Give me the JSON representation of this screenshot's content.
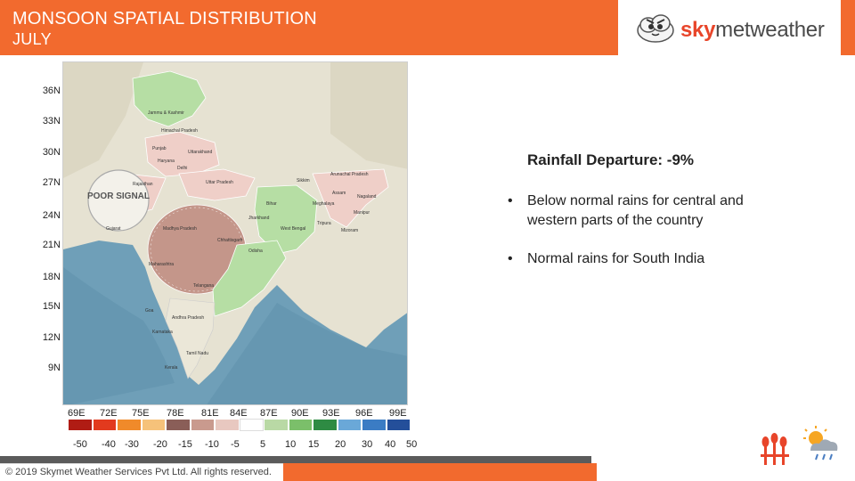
{
  "header": {
    "title": "MONSOON SPATIAL DISTRIBUTION",
    "subtitle": "JULY",
    "logo_prefix": "sky",
    "logo_suffix": "metweather"
  },
  "map": {
    "latitudes": [
      "36N",
      "33N",
      "30N",
      "27N",
      "24N",
      "21N",
      "18N",
      "15N",
      "12N",
      "9N"
    ],
    "longitudes": [
      "69E",
      "72E",
      "75E",
      "78E",
      "81E",
      "84E",
      "87E",
      "90E",
      "93E",
      "96E",
      "99E"
    ],
    "poor_signal": "POOR SIGNAL",
    "region_labels": {
      "jk": "Jammu & Kashmir",
      "hp": "Himachal Pradesh",
      "punjab": "Punjab",
      "uttarakhand": "Uttarakhand",
      "haryana": "Haryana",
      "delhi": "Delhi",
      "rajasthan": "Rajasthan",
      "up": "Uttar Pradesh",
      "sikkim": "Sikkim",
      "arunachal": "Arunachal Pradesh",
      "assam": "Assam",
      "nagaland": "Nagaland",
      "meghalaya": "Meghalaya",
      "bihar": "Bihar",
      "manipur": "Manipur",
      "jharkhand": "Jharkhand",
      "tripura": "Tripura",
      "wb": "West Bengal",
      "mizoram": "Mizoram",
      "gujarat": "Gujarat",
      "mp": "Madhya Pradesh",
      "chhattisgarh": "Chhattisgarh",
      "odisha": "Odisha",
      "maharashtra": "Maharashtra",
      "telangana": "Telangana",
      "goa": "Goa",
      "ap": "Andhra Pradesh",
      "karnataka": "Karnataka",
      "tn": "Tamil Nadu",
      "kerala": "Kerala"
    }
  },
  "scale": {
    "colors": [
      "#b01c14",
      "#e23a1e",
      "#f08a2a",
      "#f6c27a",
      "#8a5e58",
      "#c99a8e",
      "#e8c8c0",
      "#ffffff",
      "#b9d9a5",
      "#7bbf6a",
      "#2e8b43",
      "#6aa8d8",
      "#3b7cc4",
      "#244f9a"
    ],
    "labels": [
      "-50",
      "-40",
      "-30",
      "-20",
      "-15",
      "-10",
      "-5",
      "5",
      "10",
      "15",
      "20",
      "30",
      "40",
      "50"
    ]
  },
  "summary": {
    "title": "Rainfall Departure: -9%",
    "bullets": [
      "Below normal rains for central and western parts of the country",
      "Normal rains for South India"
    ]
  },
  "footer": {
    "copyright": "© 2019 Skymet Weather Services Pvt Ltd. All rights reserved."
  }
}
